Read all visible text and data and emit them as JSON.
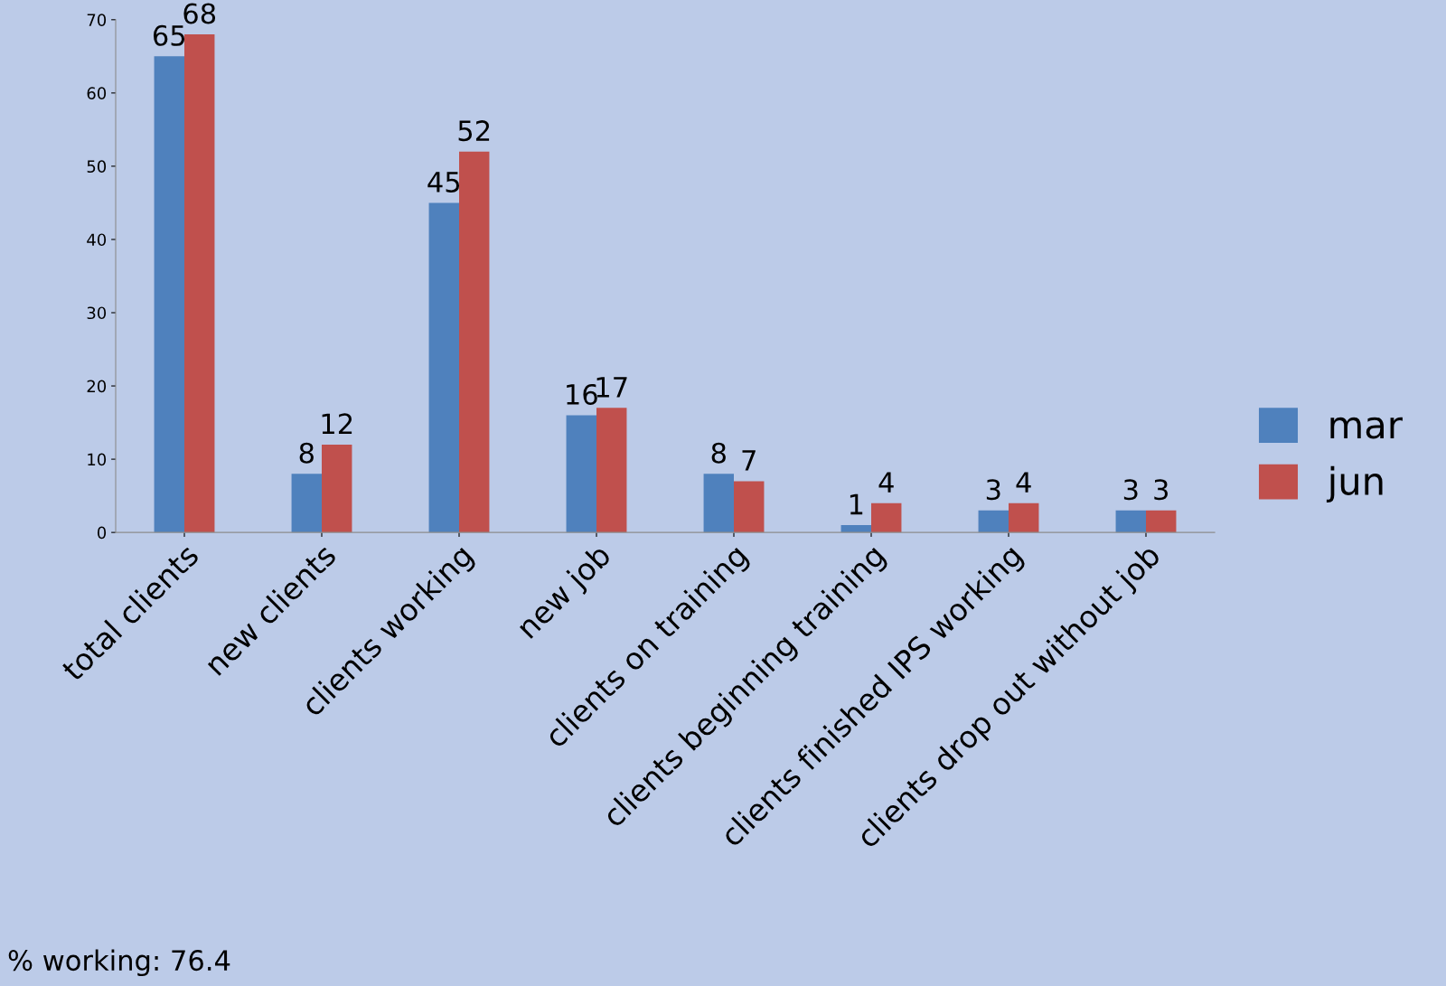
{
  "chart_data": {
    "type": "bar",
    "categories": [
      "total clients",
      "new clients",
      "clients working",
      "new job",
      "clients on training",
      "clients beginning training",
      "clients finished IPS working",
      "clients drop out without job"
    ],
    "series": [
      {
        "name": "mar",
        "color": "#4f81bd",
        "values": [
          65,
          8,
          45,
          16,
          8,
          1,
          3,
          3
        ]
      },
      {
        "name": "jun",
        "color": "#c0504d",
        "values": [
          68,
          12,
          52,
          17,
          7,
          4,
          4,
          3
        ]
      }
    ],
    "ylim": [
      0,
      70
    ],
    "yticks": [
      0,
      10,
      20,
      30,
      40,
      50,
      60,
      70
    ],
    "data_labels": true,
    "grid": false,
    "legend": "right",
    "annotations": [
      "% working: 76.4"
    ]
  }
}
